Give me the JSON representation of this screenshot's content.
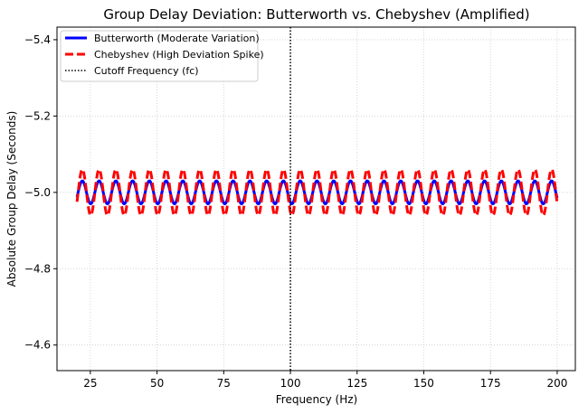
{
  "chart_data": {
    "type": "line",
    "title": "Group Delay Deviation: Butterworth vs. Chebyshev (Amplified)",
    "xlabel": "Frequency (Hz)",
    "ylabel": "Absolute Group Delay (Seconds)",
    "xlim": [
      12.5,
      206.8
    ],
    "ylim": [
      -5.433,
      -4.533
    ],
    "y_inverted": true,
    "xticks": [
      25,
      50,
      75,
      100,
      125,
      150,
      175,
      200
    ],
    "xtick_labels": [
      "25",
      "50",
      "75",
      "100",
      "125",
      "150",
      "175",
      "200"
    ],
    "yticks": [
      -5.4,
      -5.2,
      -5.0,
      -4.8,
      -4.6
    ],
    "ytick_labels": [
      "−5.4",
      "−5.2",
      "−5.0",
      "−4.8",
      "−4.6"
    ],
    "grid": true,
    "legend_placement": "upper-left",
    "series": [
      {
        "name": "Butterworth (Moderate Variation)",
        "color": "#0000ff",
        "style": "solid",
        "x_range": [
          20,
          200
        ],
        "mean": -5.0,
        "amplitude": 0.03,
        "period_hz": 6.283,
        "form": "cosine"
      },
      {
        "name": "Chebyshev (High Deviation Spike)",
        "color": "#ff0000",
        "style": "dashed",
        "x_range": [
          20,
          200
        ],
        "mean": -5.0,
        "amplitude": 0.06,
        "period_hz": 6.283,
        "form": "cosine"
      }
    ],
    "vlines": [
      {
        "name": "Cutoff Frequency (fc)",
        "x": 100,
        "color": "#000000",
        "style": "dotted"
      }
    ]
  }
}
